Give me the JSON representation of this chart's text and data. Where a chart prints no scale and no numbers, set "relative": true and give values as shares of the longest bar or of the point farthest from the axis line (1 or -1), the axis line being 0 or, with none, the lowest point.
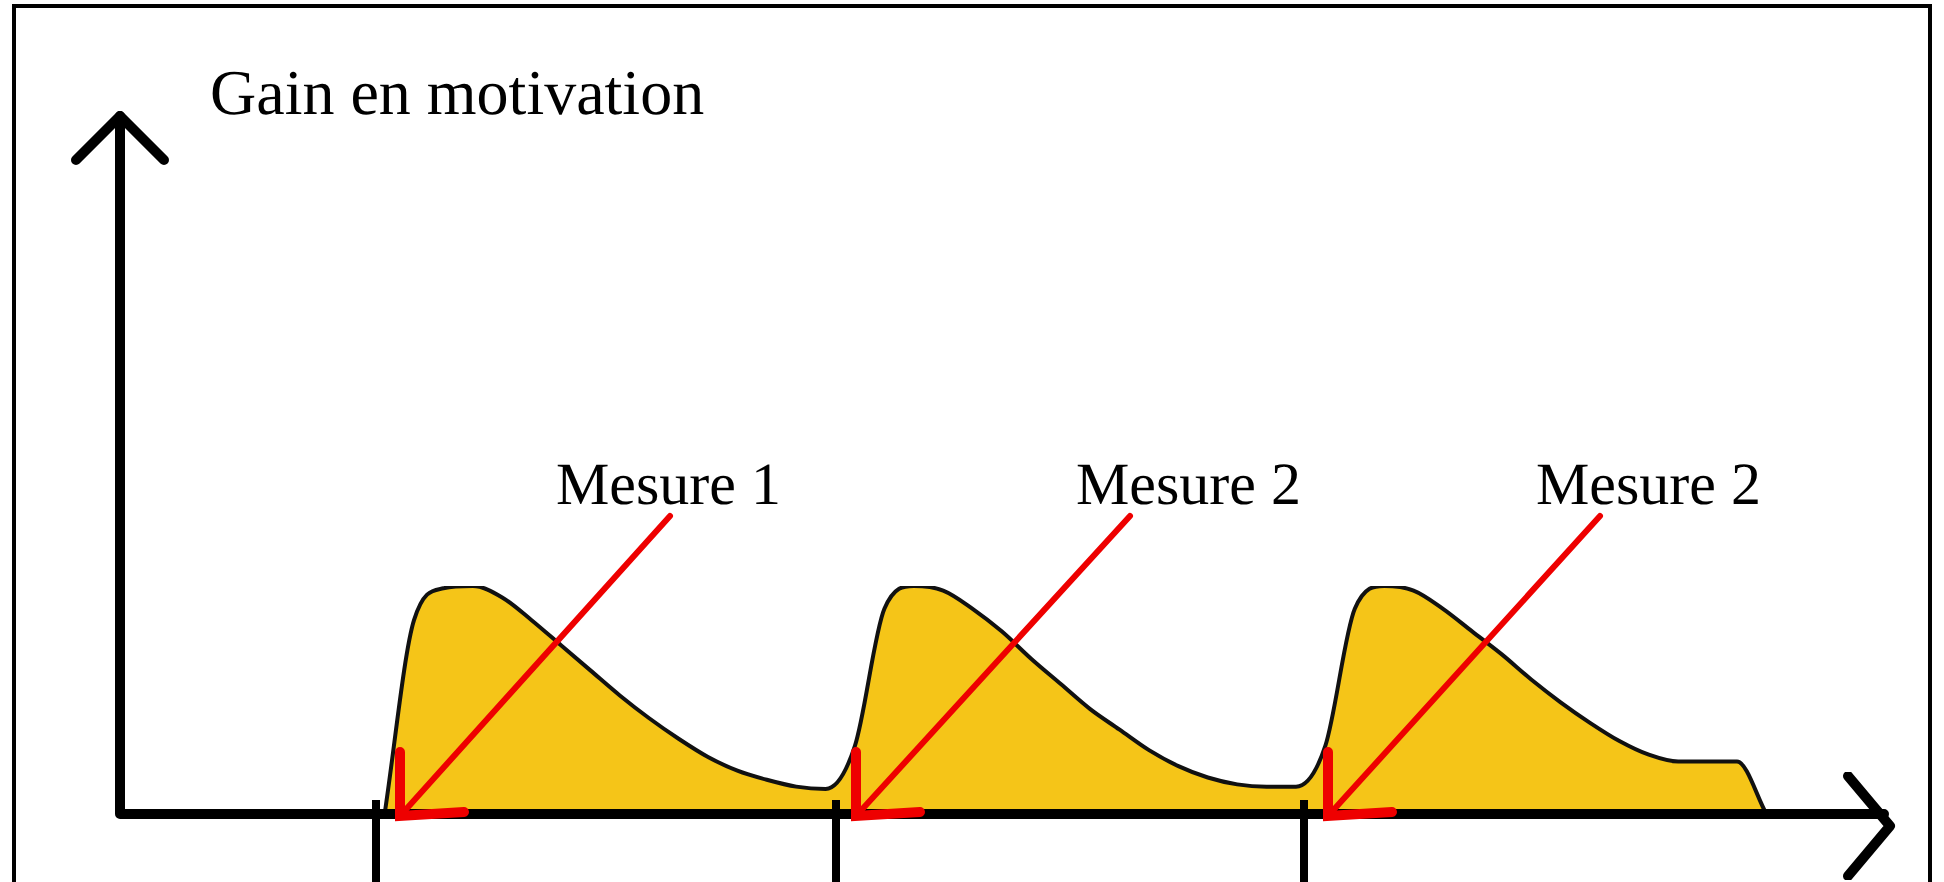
{
  "chart_data": {
    "type": "area",
    "relative": true,
    "title": "Gain en motivation",
    "annotations": [
      "Mesure 1",
      "Mesure 2",
      "Mesure 2"
    ],
    "categories": [
      null,
      null,
      null,
      null,
      null,
      null,
      null,
      null,
      null,
      null,
      null,
      null,
      null,
      null,
      null,
      null,
      null,
      null,
      null,
      null,
      null,
      null,
      null,
      null,
      null,
      null,
      null,
      null,
      null,
      null,
      null,
      null,
      null,
      null,
      null,
      null,
      null,
      null,
      null,
      null,
      null,
      null,
      null,
      null,
      null,
      null,
      null,
      null,
      null,
      null,
      null,
      null,
      null,
      null,
      null,
      null,
      null,
      null,
      null,
      null,
      null
    ],
    "values": [
      null,
      null,
      null,
      null,
      null,
      null,
      null,
      null,
      null,
      0,
      0.85,
      0.99,
      1.0,
      0.95,
      0.85,
      0.74,
      0.63,
      0.52,
      0.42,
      0.33,
      0.25,
      0.19,
      0.15,
      0.12,
      0.11,
      0.3,
      0.9,
      1.0,
      0.98,
      0.9,
      0.8,
      0.68,
      0.57,
      0.46,
      0.37,
      0.28,
      0.21,
      0.16,
      0.13,
      0.12,
      0.12,
      0.3,
      0.9,
      1.0,
      0.98,
      0.9,
      0.8,
      0.7,
      0.59,
      0.49,
      0.4,
      0.32,
      0.26,
      0.23,
      0.23,
      0.23,
      0,
      null,
      null,
      null,
      null
    ],
    "color": "#f5c518",
    "grid": false,
    "legend": false
  }
}
